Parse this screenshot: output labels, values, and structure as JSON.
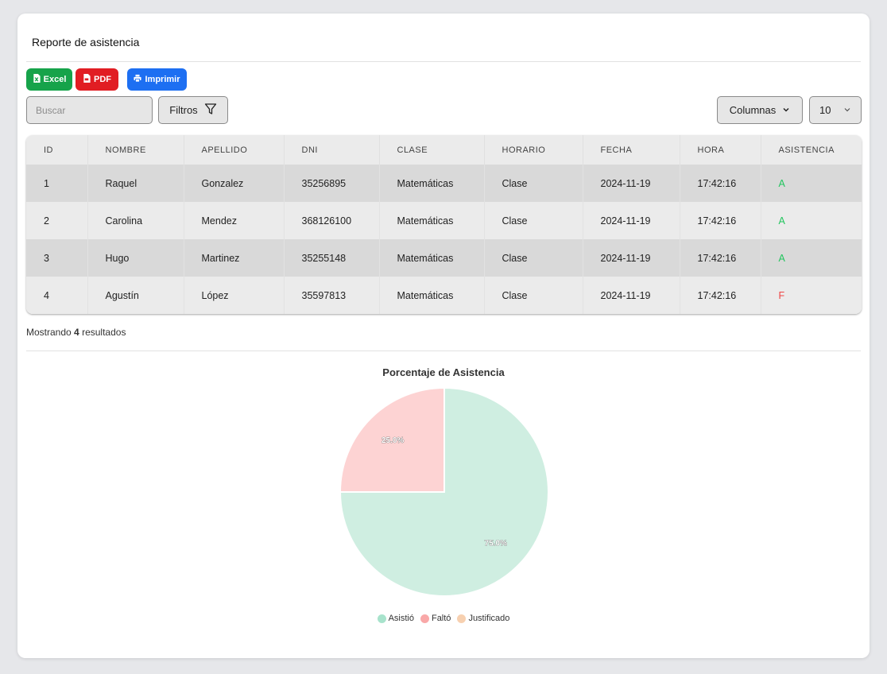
{
  "report": {
    "title": "Reporte de asistencia"
  },
  "toolbar": {
    "excel_label": "Excel",
    "pdf_label": "PDF",
    "print_label": "Imprimir",
    "search_placeholder": "Buscar",
    "search_value": "",
    "filters_label": "Filtros",
    "columns_label": "Columnas",
    "page_size": "10"
  },
  "table": {
    "headers": [
      "ID",
      "NOMBRE",
      "APELLIDO",
      "DNI",
      "CLASE",
      "HORARIO",
      "FECHA",
      "HORA",
      "ASISTENCIA"
    ],
    "rows": [
      [
        "1",
        "Raquel",
        "Gonzalez",
        "35256895",
        "Matemáticas",
        "Clase",
        "2024-11-19",
        "17:42:16",
        "A"
      ],
      [
        "2",
        "Carolina",
        "Mendez",
        "368126100",
        "Matemáticas",
        "Clase",
        "2024-11-19",
        "17:42:16",
        "A"
      ],
      [
        "3",
        "Hugo",
        "Martinez",
        "35255148",
        "Matemáticas",
        "Clase",
        "2024-11-19",
        "17:42:16",
        "A"
      ],
      [
        "4",
        "Agustín",
        "López",
        "35597813",
        "Matemáticas",
        "Clase",
        "2024-11-19",
        "17:42:16",
        "F"
      ]
    ]
  },
  "results": {
    "prefix": "Mostrando",
    "count": "4",
    "suffix": "resultados"
  },
  "colors": {
    "excel": "#16a34a",
    "pdf": "#e11d23",
    "print": "#1d6ff2",
    "present": "#22c55e",
    "absent": "#ef4444"
  },
  "chart_data": {
    "type": "pie",
    "title": "Porcentaje de Asistencia",
    "labels": [
      "Asistió",
      "Faltó",
      "Justificado"
    ],
    "values": [
      75.0,
      25.0,
      0.0
    ],
    "value_labels": [
      "75.0%",
      "25.0%",
      ""
    ],
    "colors": [
      "#cfeee1",
      "#fdd3d3",
      "#fde0c8"
    ],
    "legend_colors": [
      "#a8e3cc",
      "#f9a8a8",
      "#f7d0b0"
    ],
    "legend_position": "bottom"
  }
}
